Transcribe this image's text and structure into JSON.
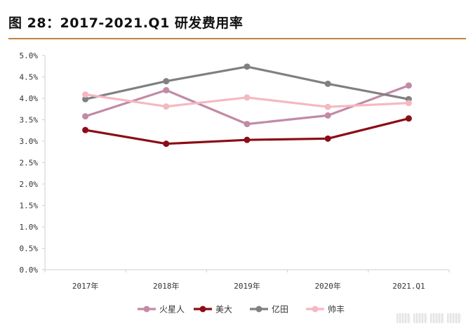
{
  "title": "图 28：2017-2021.Q1 研发费用率",
  "colors": {
    "title_rule": "#c0843a",
    "axis": "#cfcfcf"
  },
  "chart_data": {
    "type": "line",
    "categories": [
      "2017年",
      "2018年",
      "2019年",
      "2020年",
      "2021.Q1"
    ],
    "ylim": [
      0,
      5
    ],
    "yticks": [
      0,
      0.5,
      1.0,
      1.5,
      2.0,
      2.5,
      3.0,
      3.5,
      4.0,
      4.5,
      5.0
    ],
    "ytick_labels": [
      "0.0%",
      "0.5%",
      "1.0%",
      "1.5%",
      "2.0%",
      "2.5%",
      "3.0%",
      "3.5%",
      "4.0%",
      "4.5%",
      "5.0%"
    ],
    "grid": false,
    "legend_position": "bottom",
    "series": [
      {
        "name": "火星人",
        "color": "#c28aa6",
        "values": [
          3.58,
          4.19,
          3.4,
          3.6,
          4.3
        ]
      },
      {
        "name": "美大",
        "color": "#8b0d16",
        "values": [
          3.26,
          2.94,
          3.03,
          3.06,
          3.53
        ]
      },
      {
        "name": "亿田",
        "color": "#808080",
        "values": [
          3.98,
          4.4,
          4.74,
          4.34,
          3.98
        ]
      },
      {
        "name": "帅丰",
        "color": "#f6b8c0",
        "values": [
          4.09,
          3.81,
          4.02,
          3.8,
          3.89
        ]
      }
    ]
  }
}
